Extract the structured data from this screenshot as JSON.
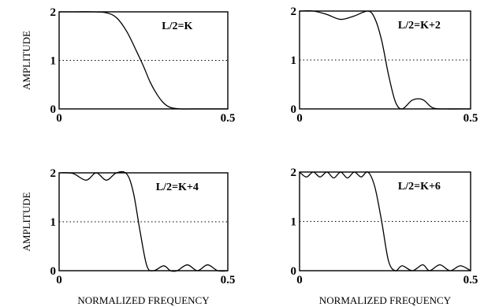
{
  "chart_data": [
    {
      "type": "line",
      "annotation": "L/2=K",
      "xlim": [
        0,
        0.5
      ],
      "ylim": [
        0,
        2
      ],
      "x_ticks": [
        "0",
        "0.5"
      ],
      "y_ticks": [
        "0",
        "1",
        "2"
      ],
      "reference_line": 1,
      "ylabel": "AMPLITUDE",
      "xlabel": "",
      "x": [
        0,
        0.05,
        0.1,
        0.14,
        0.17,
        0.2,
        0.23,
        0.25,
        0.27,
        0.29,
        0.31,
        0.33,
        0.36,
        0.4,
        0.5
      ],
      "y": [
        2.0,
        2.0,
        2.0,
        1.98,
        1.88,
        1.6,
        1.18,
        0.88,
        0.55,
        0.3,
        0.12,
        0.03,
        0.0,
        0.0,
        0.0
      ]
    },
    {
      "type": "line",
      "annotation": "L/2=K+2",
      "xlim": [
        0,
        0.5
      ],
      "ylim": [
        0,
        2
      ],
      "x_ticks": [
        "0",
        "0.5"
      ],
      "y_ticks": [
        "0",
        "1",
        "2"
      ],
      "reference_line": 1,
      "ylabel": "",
      "xlabel": "",
      "x": [
        0,
        0.04,
        0.08,
        0.12,
        0.16,
        0.2,
        0.22,
        0.24,
        0.26,
        0.28,
        0.3,
        0.33,
        0.36,
        0.39,
        0.43,
        0.5
      ],
      "y": [
        2.0,
        2.0,
        1.93,
        1.83,
        1.9,
        2.0,
        1.85,
        1.4,
        0.7,
        0.15,
        0.0,
        0.18,
        0.19,
        0.02,
        0.0,
        0.0
      ]
    },
    {
      "type": "line",
      "annotation": "L/2=K+4",
      "xlim": [
        0,
        0.5
      ],
      "ylim": [
        0,
        2
      ],
      "x_ticks": [
        "0",
        "0.5"
      ],
      "y_ticks": [
        "0",
        "1",
        "2"
      ],
      "reference_line": 1,
      "ylabel": "AMPLITUDE",
      "xlabel": "NORMALIZED FREQUENCY",
      "x": [
        0,
        0.04,
        0.08,
        0.11,
        0.14,
        0.17,
        0.2,
        0.22,
        0.24,
        0.26,
        0.28,
        0.31,
        0.33,
        0.35,
        0.38,
        0.41,
        0.44,
        0.47,
        0.5
      ],
      "y": [
        2.0,
        1.99,
        1.85,
        2.0,
        1.85,
        2.0,
        1.98,
        1.6,
        0.8,
        0.1,
        0.0,
        0.1,
        0.0,
        0.0,
        0.12,
        0.0,
        0.12,
        0.0,
        0.0
      ]
    },
    {
      "type": "line",
      "annotation": "L/2=K+6",
      "xlim": [
        0,
        0.5
      ],
      "ylim": [
        0,
        2
      ],
      "x_ticks": [
        "0",
        "0.5"
      ],
      "y_ticks": [
        "0",
        "1",
        "2"
      ],
      "reference_line": 1,
      "ylabel": "",
      "xlabel": "NORMALIZED FREQUENCY",
      "x": [
        0,
        0.02,
        0.04,
        0.06,
        0.08,
        0.1,
        0.12,
        0.14,
        0.16,
        0.18,
        0.2,
        0.22,
        0.24,
        0.26,
        0.28,
        0.3,
        0.33,
        0.36,
        0.38,
        0.41,
        0.44,
        0.47,
        0.5
      ],
      "y": [
        2.0,
        1.9,
        2.0,
        1.9,
        2.0,
        1.88,
        2.0,
        1.88,
        2.0,
        1.9,
        2.0,
        1.7,
        1.0,
        0.2,
        0.0,
        0.1,
        0.0,
        0.12,
        0.0,
        0.12,
        0.0,
        0.1,
        0.0
      ]
    }
  ]
}
